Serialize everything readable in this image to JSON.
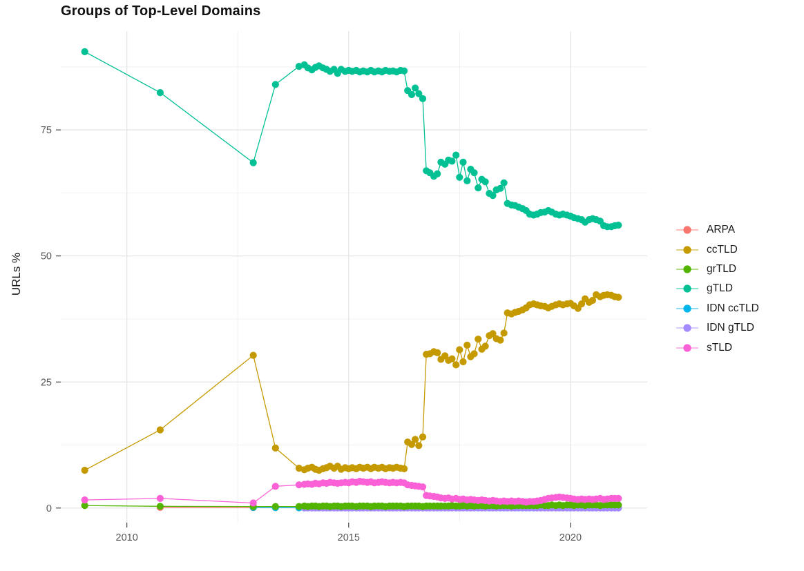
{
  "chart_data": {
    "type": "line",
    "title": "Groups of Top-Level Domains",
    "xlabel": "",
    "ylabel": "URLs %",
    "x_ticks": [
      2010,
      2015,
      2020
    ],
    "x_tick_labels": [
      "2010",
      "2015",
      "2020"
    ],
    "x_minor_ticks": [
      2012.5,
      2017.5
    ],
    "y_ticks": [
      0,
      25,
      50,
      75
    ],
    "y_tick_labels": [
      "0",
      "25",
      "50",
      "75"
    ],
    "y_minor_ticks": [
      12.5,
      37.5,
      62.5,
      87.5
    ],
    "xlim": [
      2008.51,
      2021.73
    ],
    "ylim": [
      -2.9,
      94.6
    ],
    "grid": true,
    "legend_position": "right",
    "background": "#FFFFFF",
    "monthly_x": [
      2013.88,
      2014.0,
      2014.08,
      2014.17,
      2014.25,
      2014.33,
      2014.42,
      2014.5,
      2014.58,
      2014.67,
      2014.75,
      2014.83,
      2014.92,
      2015.0,
      2015.08,
      2015.17,
      2015.25,
      2015.33,
      2015.42,
      2015.5,
      2015.58,
      2015.67,
      2015.75,
      2015.83,
      2015.92,
      2016.0,
      2016.08,
      2016.17,
      2016.25,
      2016.33,
      2016.42,
      2016.5,
      2016.58,
      2016.67,
      2016.75,
      2016.83,
      2016.92,
      2017.0,
      2017.08,
      2017.17,
      2017.25,
      2017.33,
      2017.42,
      2017.5,
      2017.58,
      2017.67,
      2017.75,
      2017.83,
      2017.92,
      2018.0,
      2018.08,
      2018.17,
      2018.25,
      2018.33,
      2018.42,
      2018.5,
      2018.58,
      2018.67,
      2018.75,
      2018.83,
      2018.92,
      2019.0,
      2019.08,
      2019.17,
      2019.25,
      2019.33,
      2019.42,
      2019.5,
      2019.58,
      2019.67,
      2019.75,
      2019.83,
      2019.92,
      2020.0,
      2020.08,
      2020.17,
      2020.25,
      2020.33,
      2020.42,
      2020.5,
      2020.58,
      2020.67,
      2020.75,
      2020.83,
      2020.92,
      2021.0,
      2021.08
    ],
    "series": [
      {
        "name": "ARPA",
        "color": "#F8766D",
        "z": 1,
        "early": [
          [
            2010.75,
            0.12
          ],
          [
            2012.85,
            0.1
          ],
          [
            2013.35,
            0.1
          ]
        ],
        "monthly_y": [
          0.06,
          0.06,
          0.06,
          0.06,
          0.06,
          0.06,
          0.06,
          0.06,
          0.06,
          0.06,
          0.06,
          0.06,
          0.06,
          0.06,
          0.06,
          0.06,
          0.06,
          0.06,
          0.06,
          0.06,
          0.06,
          0.06,
          0.06,
          0.06,
          0.06,
          0.06,
          0.06,
          0.06,
          0.06,
          0.06,
          0.06,
          0.06,
          0.06,
          0.06,
          0.06,
          0.06,
          0.06,
          0.06,
          0.06,
          0.06,
          0.06,
          0.06,
          0.06,
          0.06,
          0.06,
          0.06,
          0.06,
          0.06,
          0.06,
          0.06,
          0.06,
          0.06,
          0.06,
          0.06,
          0.06,
          0.06,
          0.06,
          0.06,
          0.06,
          0.06,
          0.06,
          0.06,
          0.06,
          0.06,
          0.06,
          0.06,
          0.06,
          0.06,
          0.06,
          0.06,
          0.06,
          0.06,
          0.06,
          0.06,
          0.06,
          0.06,
          0.06,
          0.06,
          0.06,
          0.06,
          0.06,
          0.06,
          0.06,
          0.06,
          0.06,
          0.06,
          0.06
        ]
      },
      {
        "name": "ccTLD",
        "color": "#C49A00",
        "z": 5,
        "early": [
          [
            2009.05,
            7.5
          ],
          [
            2010.75,
            15.5
          ],
          [
            2012.85,
            30.3
          ],
          [
            2013.35,
            11.9
          ]
        ],
        "monthly_y": [
          7.9,
          7.6,
          7.9,
          8.1,
          7.7,
          7.5,
          7.8,
          8.0,
          8.3,
          7.9,
          8.3,
          7.7,
          8.0,
          7.8,
          8.0,
          7.8,
          8.1,
          7.9,
          8.1,
          7.8,
          8.1,
          7.9,
          8.1,
          7.8,
          8.0,
          7.9,
          8.1,
          7.9,
          7.8,
          13.1,
          12.6,
          13.6,
          12.4,
          14.1,
          30.5,
          30.6,
          31.0,
          30.8,
          29.5,
          30.2,
          29.3,
          29.6,
          28.4,
          31.4,
          29.0,
          32.3,
          30.0,
          30.6,
          33.5,
          31.5,
          32.1,
          34.2,
          34.6,
          33.6,
          33.3,
          34.7,
          38.7,
          38.5,
          38.8,
          39.0,
          39.3,
          39.7,
          40.3,
          40.5,
          40.3,
          40.1,
          40.0,
          39.7,
          40.0,
          40.3,
          40.5,
          40.3,
          40.5,
          40.6,
          40.1,
          39.6,
          40.5,
          41.5,
          40.8,
          41.2,
          42.3,
          41.9,
          42.2,
          42.3,
          42.2,
          41.9,
          41.8
        ]
      },
      {
        "name": "grTLD",
        "color": "#53B400",
        "z": 4,
        "early": [
          [
            2009.05,
            0.5
          ],
          [
            2010.75,
            0.35
          ],
          [
            2012.85,
            0.3
          ],
          [
            2013.35,
            0.3
          ]
        ],
        "monthly_y": [
          0.3,
          0.4,
          0.3,
          0.4,
          0.4,
          0.3,
          0.4,
          0.4,
          0.3,
          0.4,
          0.4,
          0.3,
          0.4,
          0.4,
          0.4,
          0.3,
          0.4,
          0.4,
          0.4,
          0.3,
          0.4,
          0.4,
          0.4,
          0.3,
          0.4,
          0.4,
          0.4,
          0.4,
          0.3,
          0.4,
          0.4,
          0.4,
          0.4,
          0.3,
          0.4,
          0.4,
          0.4,
          0.4,
          0.4,
          0.4,
          0.4,
          0.5,
          0.4,
          0.4,
          0.5,
          0.4,
          0.5,
          0.4,
          0.5,
          0.5,
          0.4,
          0.5,
          0.5,
          0.4,
          0.5,
          0.5,
          0.5,
          0.4,
          0.5,
          0.5,
          0.5,
          0.5,
          0.5,
          0.5,
          0.5,
          0.6,
          0.5,
          0.5,
          0.6,
          0.5,
          0.6,
          0.5,
          0.6,
          0.6,
          0.5,
          0.6,
          0.6,
          0.5,
          0.6,
          0.6,
          0.6,
          0.5,
          0.6,
          0.6,
          0.6,
          0.6,
          0.6
        ]
      },
      {
        "name": "gTLD",
        "color": "#00C094",
        "z": 6,
        "early": [
          [
            2009.05,
            90.5
          ],
          [
            2010.75,
            82.4
          ],
          [
            2012.85,
            68.5
          ],
          [
            2013.35,
            84.0
          ]
        ],
        "monthly_y": [
          87.6,
          87.9,
          87.3,
          86.9,
          87.4,
          87.7,
          87.3,
          87.0,
          86.6,
          87.0,
          86.2,
          87.0,
          86.6,
          86.8,
          86.6,
          86.8,
          86.5,
          86.7,
          86.5,
          86.8,
          86.5,
          86.7,
          86.5,
          86.8,
          86.6,
          86.7,
          86.5,
          86.8,
          86.7,
          82.8,
          82.0,
          83.3,
          82.2,
          81.2,
          66.9,
          66.5,
          65.8,
          66.3,
          68.6,
          68.2,
          69.0,
          68.8,
          70.0,
          65.6,
          68.6,
          64.9,
          67.2,
          66.5,
          63.5,
          65.2,
          64.7,
          62.4,
          62.0,
          63.1,
          63.4,
          64.5,
          60.4,
          60.1,
          60.0,
          59.7,
          59.4,
          59.0,
          58.3,
          58.1,
          58.3,
          58.6,
          58.7,
          59.0,
          58.7,
          58.3,
          58.1,
          58.3,
          58.1,
          57.9,
          57.6,
          57.4,
          57.2,
          56.7,
          57.2,
          57.4,
          57.2,
          56.9,
          56.0,
          55.8,
          55.8,
          56.0,
          56.1
        ]
      },
      {
        "name": "IDN ccTLD",
        "color": "#00B6EB",
        "z": 2,
        "early": [
          [
            2012.85,
            0.12
          ],
          [
            2013.35,
            0.08
          ]
        ],
        "monthly_y": [
          0.04,
          0.04,
          0.04,
          0.04,
          0.04,
          0.04,
          0.04,
          0.04,
          0.04,
          0.04,
          0.04,
          0.04,
          0.04,
          0.04,
          0.04,
          0.04,
          0.04,
          0.04,
          0.04,
          0.04,
          0.04,
          0.04,
          0.04,
          0.04,
          0.04,
          0.04,
          0.04,
          0.04,
          0.04,
          0.04,
          0.04,
          0.04,
          0.04,
          0.04,
          0.04,
          0.04,
          0.04,
          0.04,
          0.04,
          0.04,
          0.04,
          0.04,
          0.04,
          0.04,
          0.04,
          0.04,
          0.04,
          0.04,
          0.04,
          0.04,
          0.04,
          0.04,
          0.04,
          0.04,
          0.04,
          0.04,
          0.04,
          0.04,
          0.04,
          0.04,
          0.04,
          0.04,
          0.04,
          0.04,
          0.04,
          0.04,
          0.04,
          0.04,
          0.04,
          0.04,
          0.04,
          0.04,
          0.04,
          0.04,
          0.04,
          0.04,
          0.04,
          0.04,
          0.04,
          0.04,
          0.04,
          0.04,
          0.04,
          0.04,
          0.04,
          0.04,
          0.04
        ]
      },
      {
        "name": "IDN gTLD",
        "color": "#A58AFF",
        "z": 3,
        "early": [],
        "monthly_y": [
          null,
          0.03,
          0.03,
          0.03,
          0.03,
          0.03,
          0.03,
          0.03,
          0.03,
          0.03,
          0.03,
          0.03,
          0.03,
          0.03,
          0.03,
          0.03,
          0.03,
          0.03,
          0.03,
          0.03,
          0.03,
          0.03,
          0.03,
          0.03,
          0.03,
          0.03,
          0.03,
          0.03,
          0.03,
          0.03,
          0.03,
          0.03,
          0.03,
          0.03,
          0.03,
          0.03,
          0.03,
          0.03,
          0.03,
          0.03,
          0.03,
          0.03,
          0.03,
          0.03,
          0.03,
          0.03,
          0.03,
          0.03,
          0.03,
          0.03,
          0.03,
          0.03,
          0.03,
          0.03,
          0.03,
          0.03,
          0.03,
          0.03,
          0.03,
          0.03,
          0.03,
          0.03,
          0.03,
          0.03,
          0.03,
          0.03,
          0.03,
          0.03,
          0.03,
          0.03,
          0.03,
          0.03,
          0.03,
          0.03,
          0.03,
          0.03,
          0.03,
          0.03,
          0.03,
          0.03,
          0.03,
          0.03,
          0.03,
          0.03,
          0.03,
          0.03,
          0.03
        ]
      },
      {
        "name": "sTLD",
        "color": "#FB61D7",
        "z": 7,
        "early": [
          [
            2009.05,
            1.6
          ],
          [
            2010.75,
            1.9
          ],
          [
            2012.85,
            1.0
          ],
          [
            2013.35,
            4.3
          ]
        ],
        "monthly_y": [
          4.6,
          4.7,
          4.8,
          4.7,
          4.9,
          4.8,
          5.0,
          4.9,
          5.1,
          5.0,
          4.9,
          5.0,
          5.1,
          5.0,
          5.2,
          5.1,
          5.3,
          5.2,
          5.1,
          5.2,
          5.0,
          5.1,
          5.2,
          5.1,
          5.0,
          5.1,
          5.0,
          5.1,
          5.0,
          4.6,
          4.5,
          4.4,
          4.3,
          4.2,
          2.5,
          2.4,
          2.3,
          2.2,
          2.0,
          1.9,
          2.0,
          1.8,
          1.9,
          1.7,
          1.8,
          1.6,
          1.7,
          1.6,
          1.5,
          1.6,
          1.5,
          1.4,
          1.5,
          1.4,
          1.3,
          1.4,
          1.3,
          1.4,
          1.3,
          1.4,
          1.3,
          1.2,
          1.3,
          1.3,
          1.4,
          1.5,
          1.7,
          1.9,
          2.0,
          2.1,
          2.2,
          2.1,
          2.0,
          1.9,
          1.8,
          1.7,
          1.8,
          1.7,
          1.8,
          1.7,
          1.8,
          1.9,
          1.7,
          1.8,
          1.9,
          1.9,
          1.9
        ]
      }
    ]
  }
}
